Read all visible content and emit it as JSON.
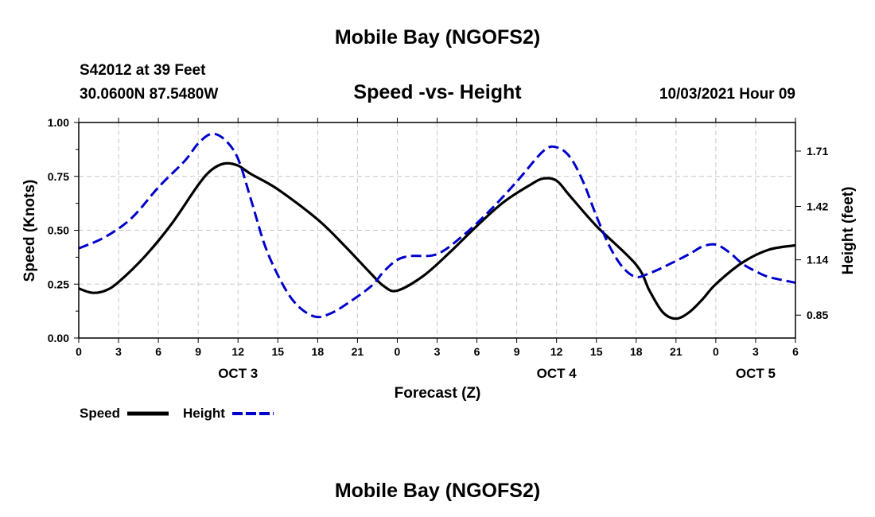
{
  "page": {
    "top_title": "Mobile Bay (NGOFS2)",
    "bottom_title": "Mobile Bay (NGOFS2)",
    "station": "S42012 at 39 Feet",
    "coords": "30.0600N  87.5480W",
    "datetime": "10/03/2021 Hour 09"
  },
  "chart_data": {
    "type": "line",
    "title": "Speed -vs- Height",
    "xlabel": "Forecast (Z)",
    "ylabel": "Speed (Knots)",
    "ylabel_right": "Height (feet)",
    "x_unit": "hours since OCT 3 00Z",
    "xlim": [
      0,
      54
    ],
    "x_ticks": [
      0,
      3,
      6,
      9,
      12,
      15,
      18,
      21,
      24,
      27,
      30,
      33,
      36,
      39,
      42,
      45,
      48,
      51,
      54
    ],
    "x_tick_labels": [
      "0",
      "3",
      "6",
      "9",
      "12",
      "15",
      "18",
      "21",
      "0",
      "3",
      "6",
      "9",
      "12",
      "15",
      "18",
      "21",
      "0",
      "3",
      "6"
    ],
    "date_labels": [
      {
        "x": 12,
        "label": "OCT 3"
      },
      {
        "x": 36,
        "label": "OCT 4"
      },
      {
        "x": 51,
        "label": "OCT 5"
      }
    ],
    "ylim": [
      0,
      1.0
    ],
    "y_ticks": [
      0,
      0.25,
      0.5,
      0.75,
      1.0
    ],
    "y_tick_labels": [
      "0.00",
      "0.25",
      "0.50",
      "0.75",
      "1.00"
    ],
    "ylim_right": [
      0.73,
      1.86
    ],
    "y_ticks_right": [
      0.85,
      1.14,
      1.42,
      1.71
    ],
    "y_tick_labels_right": [
      "0.85",
      "1.14",
      "1.42",
      "1.71"
    ],
    "series": [
      {
        "name": "Speed",
        "axis": "left",
        "color": "#000000",
        "dashed": false,
        "x": [
          0,
          1,
          2,
          3,
          5,
          7,
          9,
          10,
          11,
          12,
          13,
          15,
          18,
          20,
          22,
          23,
          24,
          26,
          28,
          30,
          32,
          34,
          35,
          36,
          37,
          39,
          42,
          43,
          44,
          45,
          46,
          47,
          48,
          50,
          52,
          54
        ],
        "y": [
          0.23,
          0.21,
          0.22,
          0.26,
          0.38,
          0.53,
          0.71,
          0.78,
          0.81,
          0.8,
          0.76,
          0.69,
          0.55,
          0.43,
          0.3,
          0.24,
          0.22,
          0.29,
          0.4,
          0.52,
          0.63,
          0.71,
          0.74,
          0.73,
          0.66,
          0.52,
          0.34,
          0.22,
          0.12,
          0.09,
          0.12,
          0.18,
          0.25,
          0.35,
          0.41,
          0.43
        ]
      },
      {
        "name": "Height",
        "axis": "right",
        "color": "#0000cc",
        "dashed": true,
        "x": [
          0,
          2,
          4,
          6,
          8,
          9,
          10,
          11,
          12,
          13,
          14,
          15,
          16,
          17,
          18,
          19,
          20,
          22,
          23,
          24,
          25,
          27,
          29,
          31,
          33,
          35,
          36,
          37,
          38,
          39,
          40,
          41,
          42,
          43,
          44,
          46,
          47,
          48,
          49,
          50,
          51,
          52,
          54
        ],
        "y": [
          1.2,
          1.26,
          1.36,
          1.52,
          1.66,
          1.75,
          1.8,
          1.77,
          1.67,
          1.45,
          1.22,
          1.06,
          0.94,
          0.87,
          0.84,
          0.86,
          0.9,
          1.0,
          1.08,
          1.14,
          1.16,
          1.17,
          1.27,
          1.4,
          1.55,
          1.71,
          1.73,
          1.68,
          1.55,
          1.37,
          1.21,
          1.1,
          1.05,
          1.07,
          1.1,
          1.17,
          1.21,
          1.22,
          1.18,
          1.12,
          1.08,
          1.05,
          1.02
        ]
      }
    ],
    "legend": [
      {
        "label": "Speed",
        "color": "#000000",
        "dashed": false
      },
      {
        "label": "Height",
        "color": "#0000cc",
        "dashed": true
      }
    ],
    "grid": true
  }
}
